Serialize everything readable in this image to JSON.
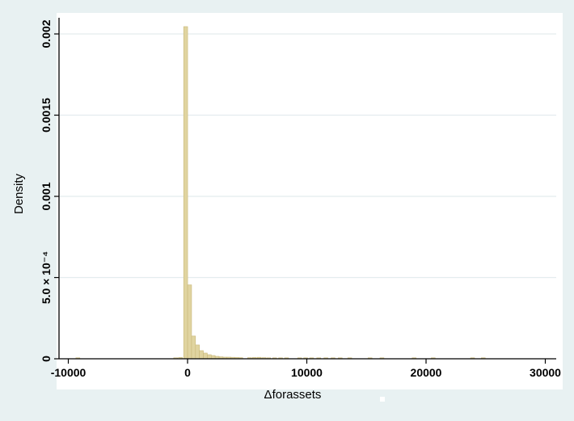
{
  "chart_data": {
    "type": "bar",
    "title": "",
    "xlabel": "Δforassets",
    "ylabel": "Density",
    "xlim": [
      -10000,
      30000
    ],
    "ylim": [
      0,
      0.002
    ],
    "x_ticks": [
      {
        "value": -10000,
        "label": "-10000"
      },
      {
        "value": 0,
        "label": "0"
      },
      {
        "value": 10000,
        "label": "10000"
      },
      {
        "value": 20000,
        "label": "20000"
      },
      {
        "value": 30000,
        "label": "30000"
      }
    ],
    "y_ticks": [
      {
        "value": 0,
        "label": "0"
      },
      {
        "value": 0.0005,
        "label": "5.0 × 10⁻⁴"
      },
      {
        "value": 0.001,
        "label": "0.001"
      },
      {
        "value": 0.0015,
        "label": "0.0015"
      },
      {
        "value": 0.002,
        "label": "0.002"
      }
    ],
    "grid": true,
    "bin_width": 330,
    "bar_color": "#e0d4a0",
    "bar_edge_color": "#c9b87a",
    "bins": [
      {
        "x": -9200,
        "y": 5e-06
      },
      {
        "x": -1000,
        "y": 4e-06
      },
      {
        "x": -600,
        "y": 8e-06
      },
      {
        "x": -160,
        "y": 0.002045
      },
      {
        "x": 170,
        "y": 0.000455
      },
      {
        "x": 500,
        "y": 0.00014
      },
      {
        "x": 830,
        "y": 8.5e-05
      },
      {
        "x": 1160,
        "y": 5e-05
      },
      {
        "x": 1490,
        "y": 3.5e-05
      },
      {
        "x": 1820,
        "y": 2.5e-05
      },
      {
        "x": 2150,
        "y": 2e-05
      },
      {
        "x": 2480,
        "y": 1.5e-05
      },
      {
        "x": 2810,
        "y": 1.2e-05
      },
      {
        "x": 3140,
        "y": 1e-05
      },
      {
        "x": 3470,
        "y": 1e-05
      },
      {
        "x": 3800,
        "y": 9e-06
      },
      {
        "x": 4130,
        "y": 8e-06
      },
      {
        "x": 4460,
        "y": 7e-06
      },
      {
        "x": 5200,
        "y": 7e-06
      },
      {
        "x": 5600,
        "y": 8e-06
      },
      {
        "x": 6000,
        "y": 9e-06
      },
      {
        "x": 6400,
        "y": 7e-06
      },
      {
        "x": 6800,
        "y": 6e-06
      },
      {
        "x": 7300,
        "y": 6e-06
      },
      {
        "x": 7800,
        "y": 5e-06
      },
      {
        "x": 8300,
        "y": 5e-06
      },
      {
        "x": 9400,
        "y": 5e-06
      },
      {
        "x": 9900,
        "y": 5e-06
      },
      {
        "x": 10400,
        "y": 4e-06
      },
      {
        "x": 11000,
        "y": 5e-06
      },
      {
        "x": 11600,
        "y": 4e-06
      },
      {
        "x": 12200,
        "y": 4e-06
      },
      {
        "x": 12800,
        "y": 4e-06
      },
      {
        "x": 13600,
        "y": 4e-06
      },
      {
        "x": 15300,
        "y": 4e-06
      },
      {
        "x": 16300,
        "y": 4e-06
      },
      {
        "x": 19000,
        "y": 4e-06
      },
      {
        "x": 20600,
        "y": 4e-06
      },
      {
        "x": 23900,
        "y": 4e-06
      },
      {
        "x": 24800,
        "y": 4e-06
      }
    ]
  }
}
